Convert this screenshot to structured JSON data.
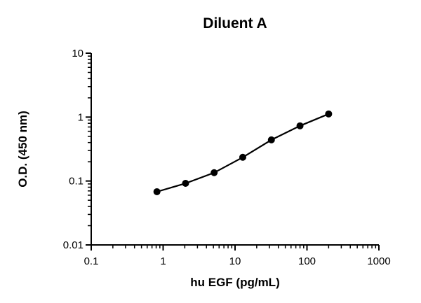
{
  "chart_data": {
    "type": "line",
    "title": "Diluent A",
    "xlabel": "hu EGF (pg/mL)",
    "ylabel": "O.D. (450 nm)",
    "xscale": "log",
    "yscale": "log",
    "xlim": [
      0.1,
      1000
    ],
    "ylim": [
      0.01,
      10
    ],
    "x_ticks": [
      "0.1",
      "1",
      "10",
      "100",
      "1000"
    ],
    "y_ticks": [
      "0.01",
      "0.1",
      "1",
      "10"
    ],
    "grid": false,
    "series": [
      {
        "x": [
          0.82,
          2.05,
          5.12,
          12.8,
          32,
          80,
          200
        ],
        "y": [
          0.068,
          0.092,
          0.135,
          0.235,
          0.44,
          0.73,
          1.12
        ]
      }
    ]
  }
}
